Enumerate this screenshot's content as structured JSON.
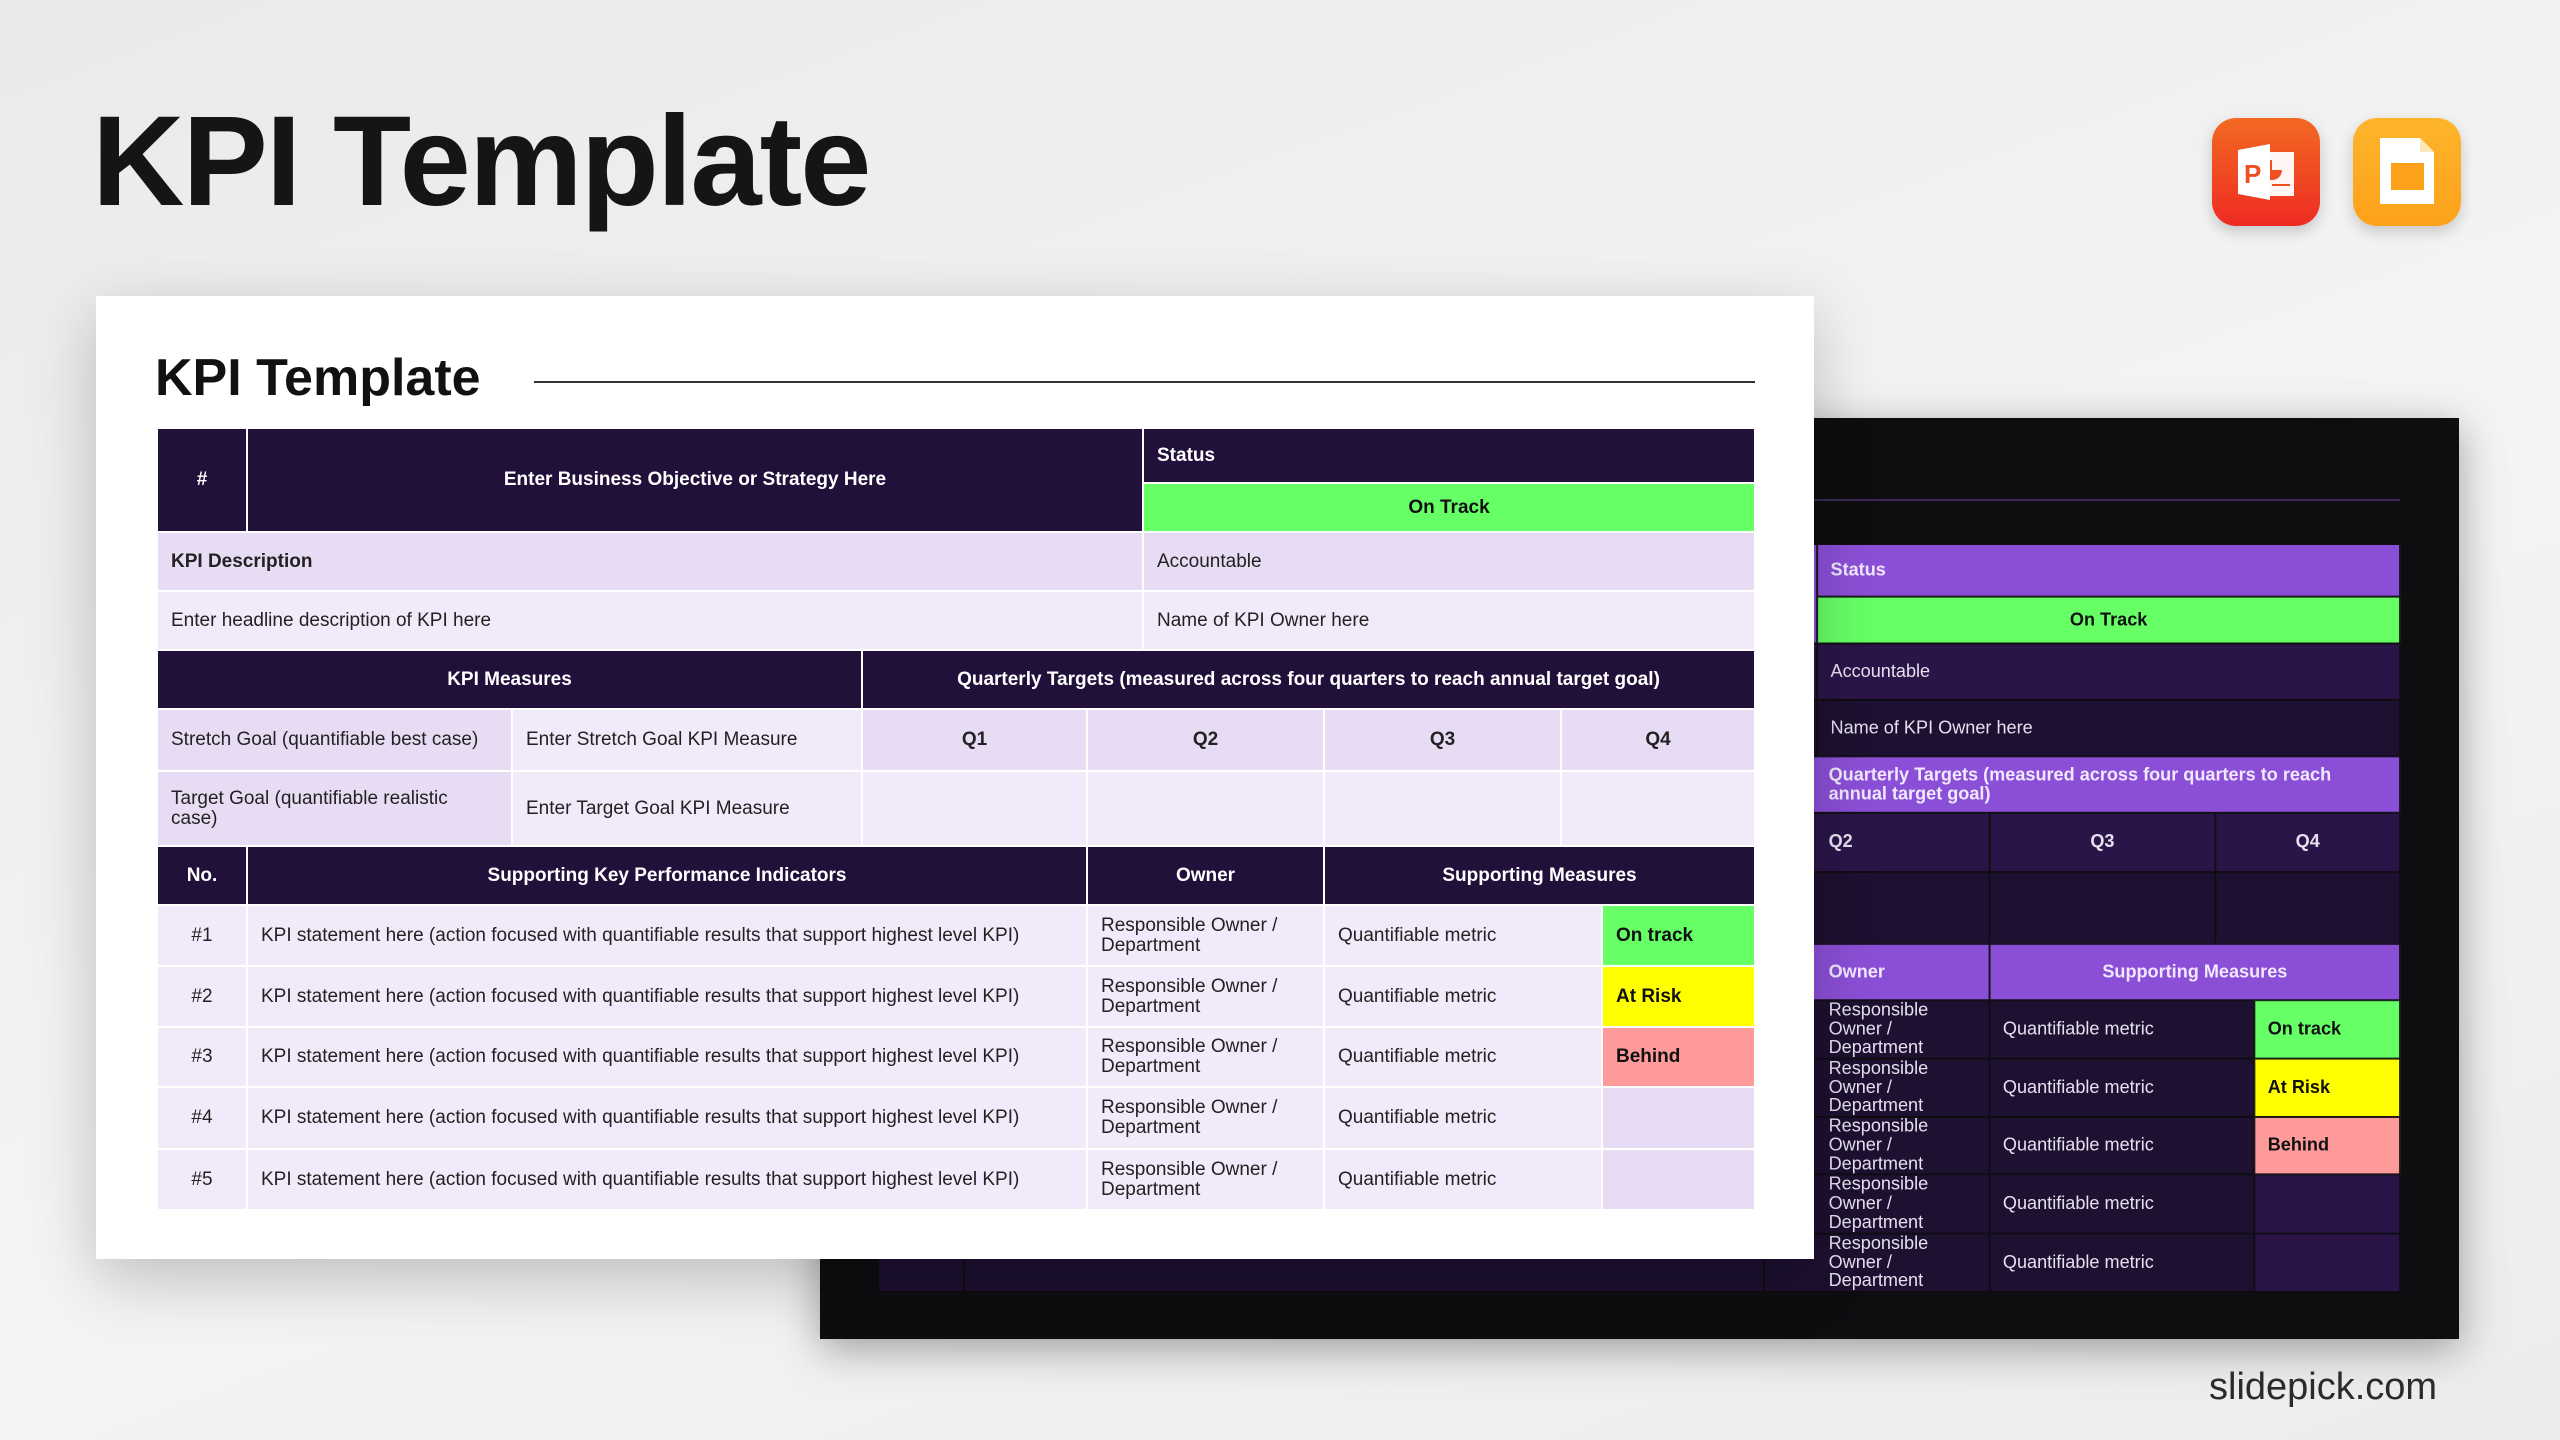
{
  "title": "KPI Template",
  "brand": "slidepick.com",
  "icons": [
    {
      "name": "powerpoint-icon",
      "color": "#f04e23"
    },
    {
      "name": "google-slides-icon",
      "color": "#fdaa20"
    }
  ],
  "colors": {
    "header": "#21103a",
    "dark_header": "#8b4fd7",
    "on_track": "#66ff66",
    "at_risk": "#ffff00",
    "behind": "#ff9a9a",
    "light1": "#e8dcf5",
    "light2": "#f1eafa"
  },
  "slide": {
    "title": "KPI Template",
    "hash": "#",
    "objective": "Enter Business Objective or Strategy Here",
    "status_label": "Status",
    "status_value": "On Track",
    "kpi_description_label": "KPI Description",
    "accountable_label": "Accountable",
    "headline": "Enter headline description of KPI here",
    "owner_name": "Name of KPI Owner here",
    "kpi_measures_label": "KPI Measures",
    "quarterly_label": "Quarterly Targets (measured across four quarters to reach annual target goal)",
    "stretch_label": "Stretch Goal (quantifiable best case)",
    "stretch_measure": "Enter Stretch Goal KPI Measure",
    "target_label": "Target Goal (quantifiable realistic case)",
    "target_measure": "Enter Target Goal KPI Measure",
    "quarters": [
      "Q1",
      "Q2",
      "Q3",
      "Q4"
    ],
    "kpi_headers": {
      "no": "No.",
      "indicator": "Supporting Key Performance Indicators",
      "owner": "Owner",
      "measures": "Supporting Measures"
    },
    "rows": [
      {
        "no": "#1",
        "statement": "KPI statement here (action focused with quantifiable results that support highest level KPI)",
        "owner": "Responsible Owner / Department",
        "metric": "Quantifiable metric",
        "status": "On track",
        "status_color": "#66ff66"
      },
      {
        "no": "#2",
        "statement": "KPI statement here (action focused with quantifiable results that support highest level KPI)",
        "owner": "Responsible Owner / Department",
        "metric": "Quantifiable metric",
        "status": "At Risk",
        "status_color": "#ffff00"
      },
      {
        "no": "#3",
        "statement": "KPI statement here (action focused with quantifiable results that support highest level KPI)",
        "owner": "Responsible Owner / Department",
        "metric": "Quantifiable metric",
        "status": "Behind",
        "status_color": "#ff9a9a"
      },
      {
        "no": "#4",
        "statement": "KPI statement here (action focused with quantifiable results that support highest level KPI)",
        "owner": "Responsible Owner / Department",
        "metric": "Quantifiable metric",
        "status": "",
        "status_color": ""
      },
      {
        "no": "#5",
        "statement": "KPI statement here (action focused with quantifiable results that support highest level KPI)",
        "owner": "Responsible Owner / Department",
        "metric": "Quantifiable metric",
        "status": "",
        "status_color": ""
      }
    ]
  }
}
